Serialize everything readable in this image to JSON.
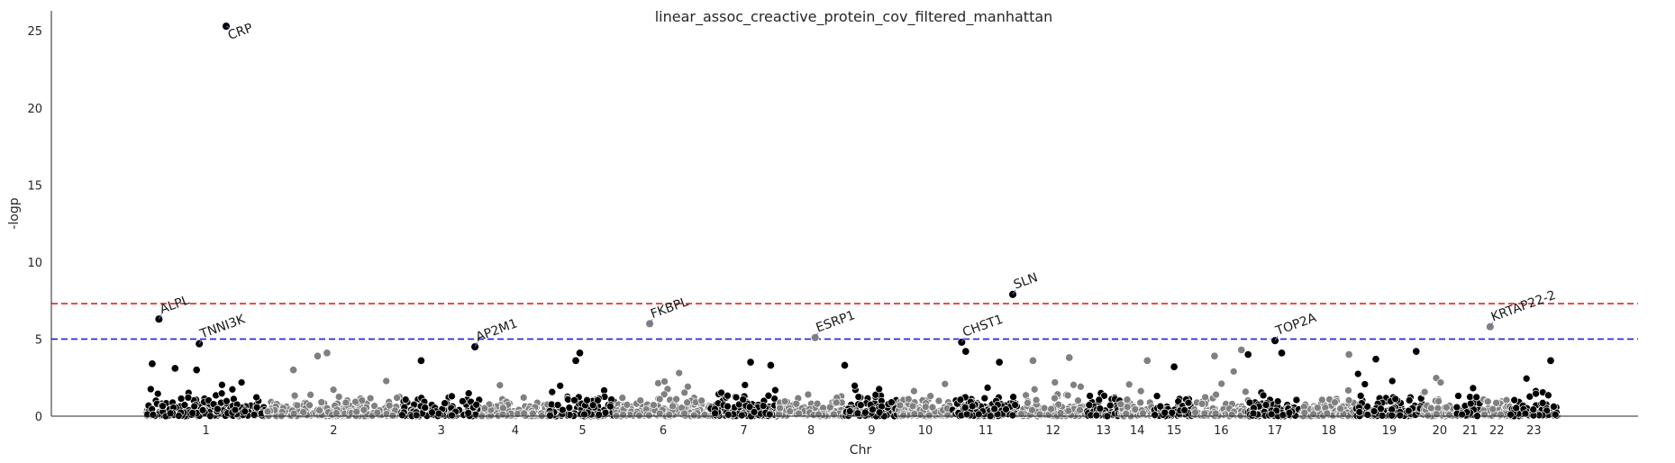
{
  "chart_data": {
    "type": "scatter",
    "title": "linear_assoc_creactive_protein_cov_filtered_manhattan",
    "xlabel": "Chr",
    "ylabel": "-logp",
    "ylim": [
      0,
      26.3
    ],
    "yticks": [
      0,
      5,
      10,
      15,
      20,
      25
    ],
    "thresholds": [
      {
        "value": 7.3,
        "color": "#e8211f"
      },
      {
        "value": 5.0,
        "color": "#1f1fe8"
      }
    ],
    "point_colors": {
      "dark": "#000000",
      "light": "#808080",
      "annotated": "#6a6ad9"
    },
    "chromosomes": [
      {
        "label": "1",
        "start": 0.0,
        "end": 0.9,
        "center": 0.45
      },
      {
        "label": "2",
        "start": 0.9,
        "end": 1.9,
        "center": 1.4
      },
      {
        "label": "3",
        "start": 1.9,
        "end": 2.5,
        "center": 2.2
      },
      {
        "label": "4",
        "start": 2.5,
        "end": 3.0,
        "center": 2.75
      },
      {
        "label": "5",
        "start": 3.0,
        "end": 3.5,
        "center": 3.25
      },
      {
        "label": "6",
        "start": 3.5,
        "end": 4.2,
        "center": 3.85
      },
      {
        "label": "7",
        "start": 4.2,
        "end": 4.7,
        "center": 4.45
      },
      {
        "label": "8",
        "start": 4.7,
        "end": 5.2,
        "center": 4.95
      },
      {
        "label": "9",
        "start": 5.2,
        "end": 5.6,
        "center": 5.4
      },
      {
        "label": "10",
        "start": 5.6,
        "end": 6.0,
        "center": 5.8
      },
      {
        "label": "11",
        "start": 6.0,
        "end": 6.5,
        "center": 6.25
      },
      {
        "label": "12",
        "start": 6.5,
        "end": 7.0,
        "center": 6.75
      },
      {
        "label": "13",
        "start": 7.0,
        "end": 7.25,
        "center": 7.125
      },
      {
        "label": "14",
        "start": 7.25,
        "end": 7.5,
        "center": 7.375
      },
      {
        "label": "15",
        "start": 7.5,
        "end": 7.8,
        "center": 7.65
      },
      {
        "label": "16",
        "start": 7.8,
        "end": 8.2,
        "center": 8.0
      },
      {
        "label": "17",
        "start": 8.2,
        "end": 8.6,
        "center": 8.4
      },
      {
        "label": "18",
        "start": 8.6,
        "end": 9.0,
        "center": 8.8
      },
      {
        "label": "19",
        "start": 9.0,
        "end": 9.5,
        "center": 9.25
      },
      {
        "label": "20",
        "start": 9.5,
        "end": 9.75,
        "center": 9.625
      },
      {
        "label": "21",
        "start": 9.75,
        "end": 9.95,
        "center": 9.85
      },
      {
        "label": "22",
        "start": 9.95,
        "end": 10.15,
        "center": 10.05
      },
      {
        "label": "23",
        "start": 10.15,
        "end": 10.5,
        "center": 10.325
      }
    ],
    "annotated_points": [
      {
        "gene": "CRP",
        "x": 0.6,
        "y": 25.3
      },
      {
        "gene": "ALPL",
        "x": 0.1,
        "y": 6.3
      },
      {
        "gene": "TNNI3K",
        "x": 0.4,
        "y": 4.7
      },
      {
        "gene": "AP2M1",
        "x": 2.45,
        "y": 4.5
      },
      {
        "gene": "FKBPL",
        "x": 3.75,
        "y": 6.0
      },
      {
        "gene": "ESRP1",
        "x": 4.98,
        "y": 5.1
      },
      {
        "gene": "CHST1",
        "x": 6.07,
        "y": 4.8
      },
      {
        "gene": "SLN",
        "x": 6.45,
        "y": 7.9
      },
      {
        "gene": "TOP2A",
        "x": 8.4,
        "y": 4.9
      },
      {
        "gene": "KRTAP22-2",
        "x": 10.0,
        "y": 5.8
      }
    ],
    "notable_points": [
      {
        "x": 0.05,
        "y": 3.4
      },
      {
        "x": 0.22,
        "y": 3.1
      },
      {
        "x": 0.38,
        "y": 3.0
      },
      {
        "x": 1.1,
        "y": 3.0
      },
      {
        "x": 1.28,
        "y": 3.9
      },
      {
        "x": 1.35,
        "y": 4.1
      },
      {
        "x": 2.05,
        "y": 3.6
      },
      {
        "x": 3.23,
        "y": 4.1
      },
      {
        "x": 3.2,
        "y": 3.6
      },
      {
        "x": 4.5,
        "y": 3.5
      },
      {
        "x": 4.65,
        "y": 3.3
      },
      {
        "x": 5.2,
        "y": 3.3
      },
      {
        "x": 6.1,
        "y": 4.2
      },
      {
        "x": 6.35,
        "y": 3.5
      },
      {
        "x": 6.6,
        "y": 3.6
      },
      {
        "x": 6.87,
        "y": 3.8
      },
      {
        "x": 7.45,
        "y": 3.6
      },
      {
        "x": 7.65,
        "y": 3.2
      },
      {
        "x": 7.95,
        "y": 3.9
      },
      {
        "x": 8.15,
        "y": 4.3
      },
      {
        "x": 8.2,
        "y": 4.0
      },
      {
        "x": 8.45,
        "y": 4.1
      },
      {
        "x": 8.95,
        "y": 4.0
      },
      {
        "x": 9.15,
        "y": 3.7
      },
      {
        "x": 9.45,
        "y": 4.2
      },
      {
        "x": 10.45,
        "y": 3.6
      }
    ]
  }
}
